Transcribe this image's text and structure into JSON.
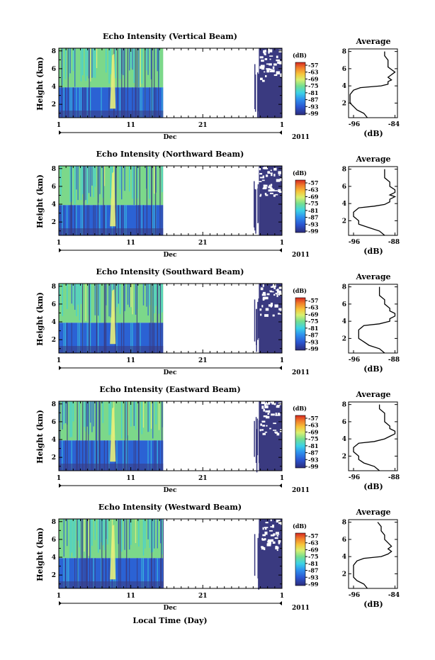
{
  "chart_data": {
    "type": "heatmap",
    "figure_xlabel": "Local Time (Day)",
    "panels": [
      {
        "title": "Echo Intensity (Vertical Beam)",
        "avg_xticks": [
          "-96",
          "-84"
        ],
        "avg_profile": [
          [
            0.3,
            -92
          ],
          [
            0.8,
            -93
          ],
          [
            1.2,
            -95
          ],
          [
            1.6,
            -96
          ],
          [
            2.0,
            -97
          ],
          [
            2.5,
            -97
          ],
          [
            3.0,
            -97
          ],
          [
            3.5,
            -96
          ],
          [
            3.8,
            -94
          ],
          [
            4.0,
            -88
          ],
          [
            4.2,
            -86
          ],
          [
            4.5,
            -86
          ],
          [
            4.7,
            -85
          ],
          [
            5.0,
            -86
          ],
          [
            5.3,
            -85
          ],
          [
            5.6,
            -84
          ],
          [
            5.9,
            -85
          ],
          [
            6.2,
            -86
          ],
          [
            6.5,
            -86
          ],
          [
            7.0,
            -86
          ],
          [
            7.5,
            -87
          ],
          [
            8.0,
            -87
          ]
        ]
      },
      {
        "title": "Echo Intensity (Northward Beam)",
        "avg_xticks": [
          "-96",
          "-88"
        ],
        "avg_profile": [
          [
            0.3,
            -90
          ],
          [
            0.8,
            -91
          ],
          [
            1.2,
            -93
          ],
          [
            1.6,
            -95
          ],
          [
            2.0,
            -95
          ],
          [
            2.5,
            -96
          ],
          [
            3.0,
            -96
          ],
          [
            3.5,
            -95
          ],
          [
            3.7,
            -92
          ],
          [
            3.9,
            -90
          ],
          [
            4.2,
            -89
          ],
          [
            4.5,
            -89
          ],
          [
            4.8,
            -88
          ],
          [
            5.0,
            -89
          ],
          [
            5.3,
            -88
          ],
          [
            5.6,
            -88
          ],
          [
            6.0,
            -89
          ],
          [
            6.5,
            -89
          ],
          [
            7.0,
            -90
          ],
          [
            7.5,
            -90
          ],
          [
            8.0,
            -90
          ]
        ]
      },
      {
        "title": "Echo Intensity (Southward Beam)",
        "avg_xticks": [
          "-96",
          "-88"
        ],
        "avg_profile": [
          [
            0.3,
            -90
          ],
          [
            0.8,
            -91
          ],
          [
            1.2,
            -93
          ],
          [
            1.6,
            -94
          ],
          [
            2.0,
            -95
          ],
          [
            2.5,
            -95
          ],
          [
            3.0,
            -95
          ],
          [
            3.5,
            -94
          ],
          [
            3.7,
            -91
          ],
          [
            4.0,
            -89
          ],
          [
            4.3,
            -89
          ],
          [
            4.6,
            -88
          ],
          [
            4.9,
            -88
          ],
          [
            5.2,
            -89
          ],
          [
            5.5,
            -89
          ],
          [
            6.0,
            -90
          ],
          [
            6.5,
            -90
          ],
          [
            7.0,
            -91
          ],
          [
            7.5,
            -91
          ],
          [
            8.0,
            -91
          ]
        ]
      },
      {
        "title": "Echo Intensity (Eastward Beam)",
        "avg_xticks": [
          "-96",
          "-88"
        ],
        "avg_profile": [
          [
            0.3,
            -91
          ],
          [
            0.8,
            -92
          ],
          [
            1.2,
            -94
          ],
          [
            1.6,
            -95
          ],
          [
            2.0,
            -95
          ],
          [
            2.5,
            -96
          ],
          [
            3.0,
            -96
          ],
          [
            3.5,
            -95
          ],
          [
            3.7,
            -92
          ],
          [
            4.0,
            -90
          ],
          [
            4.3,
            -89
          ],
          [
            4.6,
            -88
          ],
          [
            4.9,
            -88
          ],
          [
            5.2,
            -89
          ],
          [
            5.5,
            -89
          ],
          [
            6.0,
            -90
          ],
          [
            6.5,
            -90
          ],
          [
            7.0,
            -90
          ],
          [
            7.5,
            -91
          ],
          [
            8.0,
            -91
          ]
        ]
      },
      {
        "title": "Echo Intensity (Westward Beam)",
        "avg_xticks": [
          "-96",
          "-84"
        ],
        "avg_profile": [
          [
            0.3,
            -92
          ],
          [
            0.8,
            -93
          ],
          [
            1.2,
            -95
          ],
          [
            1.6,
            -96
          ],
          [
            2.0,
            -96
          ],
          [
            2.5,
            -96
          ],
          [
            3.0,
            -96
          ],
          [
            3.5,
            -95
          ],
          [
            3.8,
            -93
          ],
          [
            4.0,
            -88
          ],
          [
            4.3,
            -86
          ],
          [
            4.6,
            -85
          ],
          [
            4.9,
            -86
          ],
          [
            5.2,
            -85
          ],
          [
            5.6,
            -86
          ],
          [
            6.0,
            -87
          ],
          [
            6.5,
            -87
          ],
          [
            7.0,
            -88
          ],
          [
            7.5,
            -88
          ],
          [
            8.0,
            -89
          ]
        ]
      }
    ],
    "shared": {
      "ylabel": "Height (km)",
      "yticks": [
        "2",
        "4",
        "6",
        "8"
      ],
      "ylim": [
        0.5,
        8.3
      ],
      "xticks": [
        "1",
        "11",
        "21",
        "1"
      ],
      "xtick_days": [
        1,
        11,
        21,
        32
      ],
      "xlim": [
        1,
        32
      ],
      "month_label": "Dec",
      "year_label": "2011",
      "data_days_1": [
        1,
        15.5
      ],
      "data_days_2": [
        28,
        32
      ],
      "colorbar_unit": "(dB)",
      "colorbar_ticks": [
        "-57",
        "-63",
        "-69",
        "-75",
        "-81",
        "-87",
        "-93",
        "-99"
      ],
      "avg_title": "Average",
      "avg_unit": "(dB)",
      "avg_yticks": [
        "2",
        "4",
        "6",
        "8"
      ],
      "colors": {
        "background": "#ffffff",
        "navy": "#3a3a80",
        "green": "#7cd88a",
        "cyan": "#3ccfe0",
        "blue": "#2b62d4",
        "yellow": "#e8f07a",
        "red": "#d62b22"
      }
    }
  }
}
